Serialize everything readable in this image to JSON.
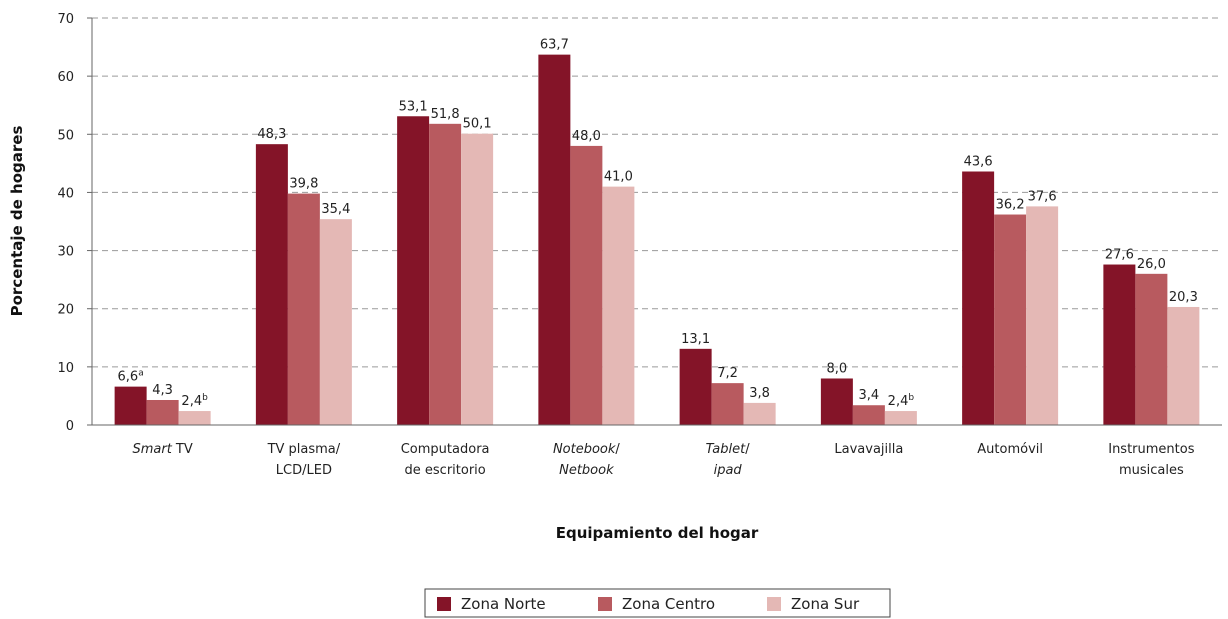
{
  "chart_data": {
    "type": "bar",
    "xlabel": "Equipamiento del hogar",
    "ylabel": "Porcentaje de hogares",
    "ylim": [
      0,
      70
    ],
    "yticks": [
      0,
      10,
      20,
      30,
      40,
      50,
      60,
      70
    ],
    "grid": true,
    "legend_position": "bottom",
    "categories": [
      {
        "lines": [
          [
            {
              "t": "Smart",
              "i": true
            },
            {
              "t": " TV",
              "i": false
            }
          ]
        ]
      },
      {
        "lines": [
          [
            {
              "t": "TV plasma/",
              "i": false
            }
          ],
          [
            {
              "t": "LCD/LED",
              "i": false
            }
          ]
        ]
      },
      {
        "lines": [
          [
            {
              "t": "Computadora",
              "i": false
            }
          ],
          [
            {
              "t": "de escritorio",
              "i": false
            }
          ]
        ]
      },
      {
        "lines": [
          [
            {
              "t": "Notebook",
              "i": true
            },
            {
              "t": "/",
              "i": false
            }
          ],
          [
            {
              "t": "Netbook",
              "i": true
            }
          ]
        ]
      },
      {
        "lines": [
          [
            {
              "t": "Tablet",
              "i": true
            },
            {
              "t": "/",
              "i": false
            }
          ],
          [
            {
              "t": "ipad",
              "i": true
            }
          ]
        ]
      },
      {
        "lines": [
          [
            {
              "t": "Lavavajilla",
              "i": false
            }
          ]
        ]
      },
      {
        "lines": [
          [
            {
              "t": "Automóvil",
              "i": false
            }
          ]
        ]
      },
      {
        "lines": [
          [
            {
              "t": "Instrumentos",
              "i": false
            }
          ],
          [
            {
              "t": "musicales",
              "i": false
            }
          ]
        ]
      }
    ],
    "series": [
      {
        "name": "Zona Norte",
        "color": "#841428",
        "values": [
          6.6,
          48.3,
          53.1,
          63.7,
          13.1,
          8.0,
          43.6,
          27.6
        ],
        "labels": [
          "6,6",
          "48,3",
          "53,1",
          "63,7",
          "13,1",
          "8,0",
          "43,6",
          "27,6"
        ],
        "sups": [
          "a",
          "",
          "",
          "",
          "",
          "",
          "",
          ""
        ]
      },
      {
        "name": "Zona Centro",
        "color": "#B85A5F",
        "values": [
          4.3,
          39.8,
          51.8,
          48.0,
          7.2,
          3.4,
          36.2,
          26.0
        ],
        "labels": [
          "4,3",
          "39,8",
          "51,8",
          "48,0",
          "7,2",
          "3,4",
          "36,2",
          "26,0"
        ],
        "sups": [
          "",
          "",
          "",
          "",
          "",
          "",
          "",
          ""
        ]
      },
      {
        "name": "Zona Sur",
        "color": "#E4B8B5",
        "values": [
          2.4,
          35.4,
          50.1,
          41.0,
          3.8,
          2.4,
          37.6,
          20.3
        ],
        "labels": [
          "2,4",
          "35,4",
          "50,1",
          "41,0",
          "3,8",
          "2,4",
          "37,6",
          "20,3"
        ],
        "sups": [
          "b",
          "",
          "",
          "",
          "",
          "b",
          "",
          ""
        ]
      }
    ]
  }
}
